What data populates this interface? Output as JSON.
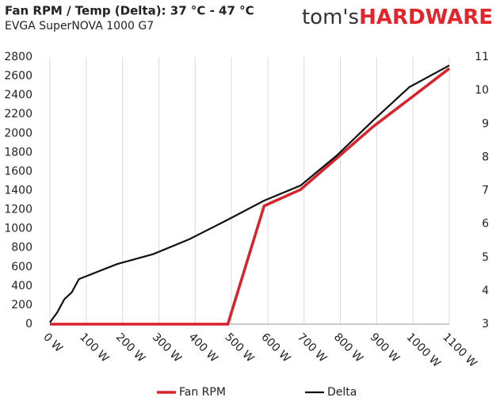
{
  "logo": {
    "left": "tom's",
    "right": "HARDWARE"
  },
  "chart_data": {
    "type": "line",
    "title": "Fan RPM / Temp (Delta): 37 °C - 47 °C",
    "subtitle": "EVGA SuperNOVA 1000 G7",
    "xlim": [
      0,
      1100
    ],
    "xticks": [
      {
        "value": 0,
        "label": "0 W"
      },
      {
        "value": 100,
        "label": "100 W"
      },
      {
        "value": 200,
        "label": "200 W"
      },
      {
        "value": 300,
        "label": "300 W"
      },
      {
        "value": 400,
        "label": "400 W"
      },
      {
        "value": 500,
        "label": "500 W"
      },
      {
        "value": 600,
        "label": "600 W"
      },
      {
        "value": 700,
        "label": "700 W"
      },
      {
        "value": 800,
        "label": "800 W"
      },
      {
        "value": 900,
        "label": "900 W"
      },
      {
        "value": 1000,
        "label": "1000 W"
      },
      {
        "value": 1100,
        "label": "1100 W"
      }
    ],
    "ylim": [
      0,
      2800
    ],
    "yticks": [
      0,
      200,
      400,
      600,
      800,
      1000,
      1200,
      1400,
      1600,
      1800,
      2000,
      2200,
      2400,
      2600,
      2800
    ],
    "y2lim": [
      3,
      11
    ],
    "y2ticks": [
      3,
      4,
      5,
      6,
      7,
      8,
      9,
      10,
      11
    ],
    "grid": true,
    "legend": "bottom",
    "series": [
      {
        "name": "Fan RPM",
        "color": "#d9222a",
        "x": [
          0,
          100,
          200,
          300,
          400,
          490,
          590,
          690,
          790,
          890,
          990,
          1100
        ],
        "values": [
          0,
          0,
          0,
          0,
          0,
          0,
          1240,
          1410,
          1740,
          2070,
          2360,
          2680
        ]
      },
      {
        "name": "Delta",
        "color": "#111111",
        "axis": "y2",
        "x": [
          0,
          20,
          40,
          60,
          80,
          185,
          285,
          385,
          485,
          590,
          690,
          790,
          890,
          990,
          1100
        ],
        "values": [
          3.05,
          3.35,
          3.75,
          3.95,
          4.35,
          4.8,
          5.1,
          5.55,
          6.1,
          6.7,
          7.15,
          8.05,
          9.1,
          10.1,
          10.75
        ]
      }
    ]
  }
}
